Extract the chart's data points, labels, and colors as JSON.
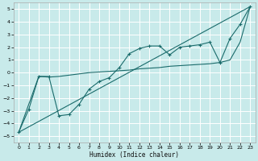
{
  "xlabel": "Humidex (Indice chaleur)",
  "background_color": "#c8eaea",
  "grid_color": "#ffffff",
  "line_color": "#1a6b6b",
  "xlim": [
    -0.5,
    23.5
  ],
  "ylim": [
    -5.5,
    5.5
  ],
  "xticks": [
    0,
    1,
    2,
    3,
    4,
    5,
    6,
    7,
    8,
    9,
    10,
    11,
    12,
    13,
    14,
    15,
    16,
    17,
    18,
    19,
    20,
    21,
    22,
    23
  ],
  "yticks": [
    -5,
    -4,
    -3,
    -2,
    -1,
    0,
    1,
    2,
    3,
    4,
    5
  ],
  "line1_x": [
    0,
    1,
    2,
    3,
    4,
    5,
    6,
    7,
    8,
    9,
    10,
    11,
    12,
    13,
    14,
    15,
    16,
    17,
    18,
    19,
    20,
    21,
    22,
    23
  ],
  "line1_y": [
    -4.7,
    -2.9,
    -0.3,
    -0.3,
    -3.4,
    -3.3,
    -2.5,
    -1.3,
    -0.7,
    -0.4,
    0.4,
    1.5,
    1.9,
    2.1,
    2.1,
    1.4,
    2.0,
    2.1,
    2.2,
    2.4,
    0.8,
    2.7,
    3.8,
    5.2
  ],
  "line2_x": [
    0,
    23
  ],
  "line2_y": [
    -4.7,
    5.2
  ],
  "line3_x": [
    0,
    2,
    3,
    4,
    5,
    6,
    7,
    8,
    9,
    10,
    11,
    12,
    13,
    14,
    15,
    16,
    17,
    18,
    19,
    20,
    21,
    22,
    23
  ],
  "line3_y": [
    -4.7,
    -0.3,
    -0.35,
    -0.3,
    -0.2,
    -0.1,
    0.0,
    0.05,
    0.1,
    0.15,
    0.2,
    0.3,
    0.35,
    0.4,
    0.5,
    0.55,
    0.6,
    0.65,
    0.7,
    0.8,
    1.0,
    2.4,
    5.2
  ]
}
